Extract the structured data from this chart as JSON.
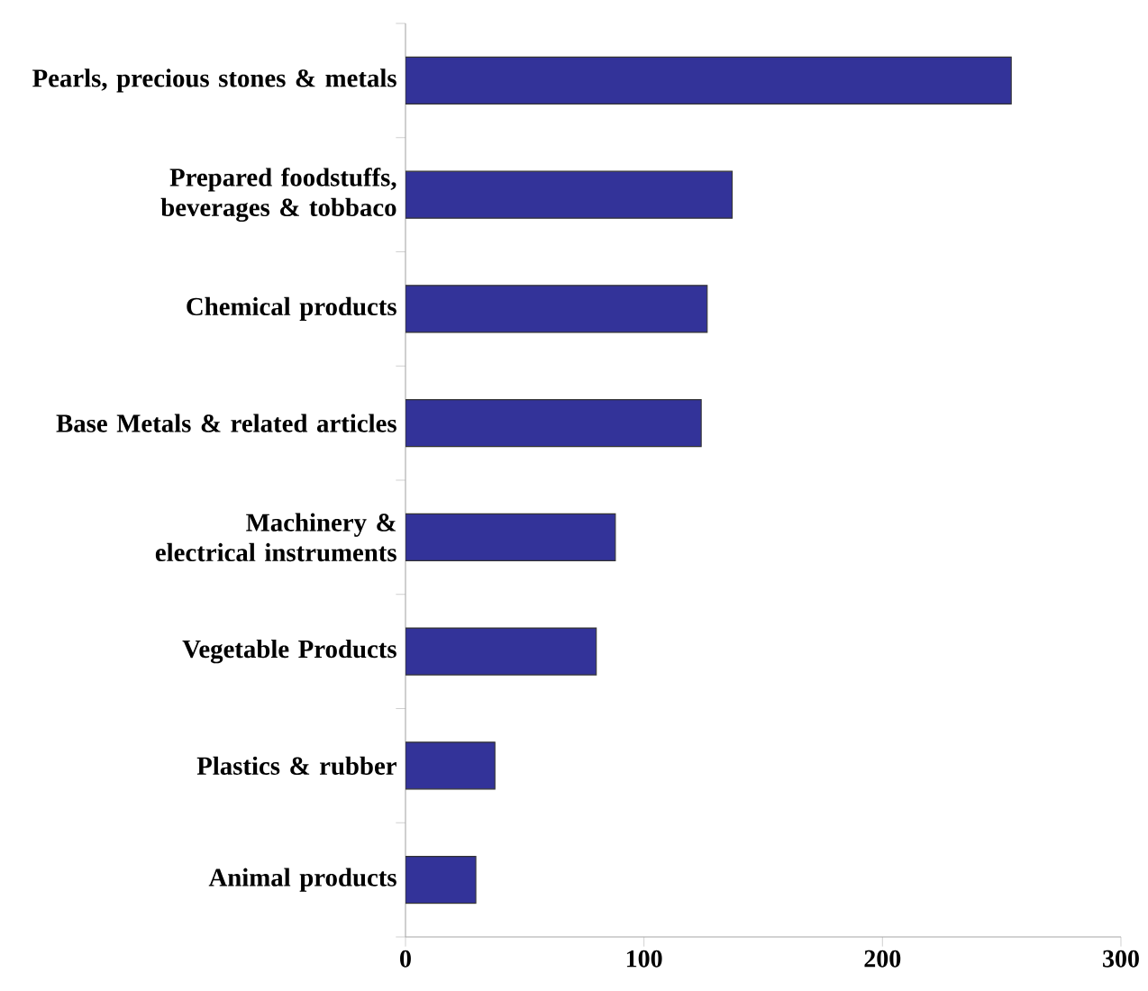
{
  "chart_data": {
    "type": "bar",
    "orientation": "horizontal",
    "categories": [
      "Pearls, precious stones & metals",
      "Prepared foodstuffs, beverages & tobbaco",
      "Chemical products",
      "Base Metals & related articles",
      "Machinery & electrical instruments",
      "Vegetable Products",
      "Plastics & rubber",
      "Animal products"
    ],
    "values": [
      254,
      137,
      126.5,
      124,
      88,
      80,
      37.5,
      29.5
    ],
    "color": "#333399",
    "xlim": [
      0,
      300
    ],
    "xticks": [
      0,
      100,
      200,
      300
    ]
  }
}
